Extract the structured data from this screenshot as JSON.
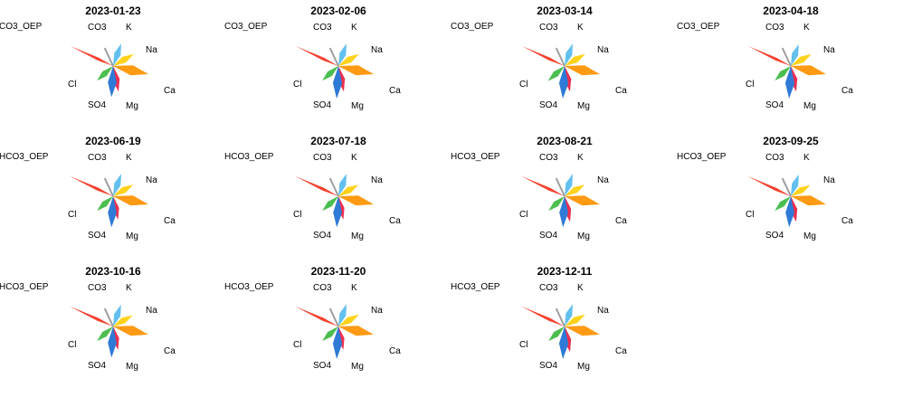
{
  "chart_data": {
    "type": "radar",
    "variables": [
      "K",
      "Na",
      "Ca",
      "Mg",
      "SO4",
      "Cl",
      "HCO3_OEP",
      "CO3"
    ],
    "colors": {
      "K": "#63c0ee",
      "Na": "#ffd21c",
      "Ca": "#ff9a12",
      "Mg": "#ee2f50",
      "SO4": "#2e7ad6",
      "Cl": "#4cbe50",
      "HCO3_OEP": "#f4402e",
      "CO3": "#9e9e9e"
    },
    "panels": [
      {
        "title": "2023-01-23",
        "hco3_label": "CO3_OEP",
        "values": [
          0.66,
          0.66,
          1.0,
          0.72,
          0.86,
          0.6,
          1.3,
          0.0
        ]
      },
      {
        "title": "2023-02-06",
        "hco3_label": "CO3_OEP",
        "values": [
          0.66,
          0.66,
          1.0,
          0.72,
          0.9,
          0.6,
          1.3,
          0.0
        ]
      },
      {
        "title": "2023-03-14",
        "hco3_label": "CO3_OEP",
        "values": [
          0.66,
          0.66,
          1.0,
          0.72,
          0.9,
          0.62,
          1.3,
          0.0
        ]
      },
      {
        "title": "2023-04-18",
        "hco3_label": "CO3_OEP",
        "values": [
          0.64,
          0.66,
          1.0,
          0.72,
          0.9,
          0.6,
          1.3,
          0.0
        ]
      },
      {
        "title": "2023-06-19",
        "hco3_label": "HCO3_OEP",
        "values": [
          0.66,
          0.64,
          1.0,
          0.66,
          0.86,
          0.6,
          1.32,
          0.0
        ]
      },
      {
        "title": "2023-07-18",
        "hco3_label": "HCO3_OEP",
        "values": [
          0.66,
          0.64,
          1.0,
          0.66,
          0.86,
          0.6,
          1.32,
          0.0
        ]
      },
      {
        "title": "2023-08-21",
        "hco3_label": "HCO3_OEP",
        "values": [
          0.66,
          0.64,
          1.0,
          0.72,
          0.86,
          0.6,
          1.32,
          0.0
        ]
      },
      {
        "title": "2023-09-25",
        "hco3_label": "HCO3_OEP",
        "values": [
          0.64,
          0.62,
          1.0,
          0.72,
          0.86,
          0.6,
          1.32,
          0.0
        ]
      },
      {
        "title": "2023-10-16",
        "hco3_label": "HCO3_OEP",
        "values": [
          0.64,
          0.62,
          1.0,
          0.66,
          0.86,
          0.6,
          1.32,
          0.0
        ]
      },
      {
        "title": "2023-11-20",
        "hco3_label": "HCO3_OEP",
        "values": [
          0.66,
          0.66,
          1.0,
          0.66,
          0.9,
          0.6,
          1.32,
          0.0
        ]
      },
      {
        "title": "2023-12-11",
        "hco3_label": "HCO3_OEP",
        "values": [
          0.66,
          0.66,
          1.0,
          0.72,
          0.9,
          0.6,
          1.32,
          0.0
        ]
      }
    ]
  }
}
